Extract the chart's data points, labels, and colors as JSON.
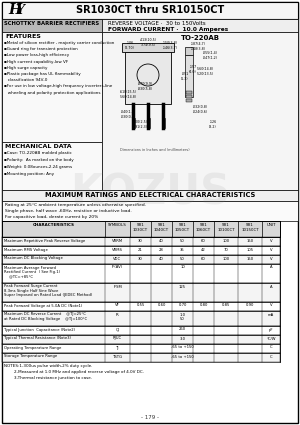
{
  "title": "SR1030CT thru SR10150CT",
  "left_header": "SCHOTTKY BARRIER RECTIFIERS",
  "right_header1": "REVERSE VOLTAGE ·  30 to 150Volts",
  "right_header2": "FORWARD CURRENT ·  10.0 Amperes",
  "package": "TO-220AB",
  "features_title": "FEATURES",
  "features": [
    "▪Metal of silicon rectifier , majority carrier conduction",
    "▪Guard ring for transient protection",
    "▪Low power loss,high efficiency",
    "▪High current capability,low VF",
    "▪High surge capacity",
    "▪Plastic package has UL flammability",
    "   classification 94V-0",
    "▪For use in low voltage,high frequency inverters,line",
    "   wheeling and polarity protection applications"
  ],
  "mech_title": "MECHANICAL DATA",
  "mech": [
    "▪Case: TO-220AB molded plastic",
    "▪Polarity:  As marked on the body",
    "▪Weight: 0.08ounces,2.24 grams",
    "▪Mounting position: Any"
  ],
  "max_title": "MAXIMUM RATINGS AND ELECTRICAL CHARACTERISTICS",
  "max_note1": "Rating at 25°C ambient temperature unless otherwise specified.",
  "max_note2": "Single phase, half wave ,60Hz, resistive or inductive load.",
  "max_note3": "For capacitive load, derate current by 20%",
  "col_headers": [
    "CHARACTERISTICS",
    "SYMBOLS",
    "SR1\n1030CT",
    "SR1\n1040CT",
    "SR1\n1050CT",
    "SR1\n1060CT",
    "SR1\n10100CT",
    "SR1\n10150CT",
    "UNIT"
  ],
  "rows": [
    [
      "Maximum Repetitive Peak Reverse Voltage",
      "VRRM",
      "30",
      "40",
      "50",
      "60",
      "100",
      "150",
      "V"
    ],
    [
      "Maximum RMS Voltage",
      "VRMS",
      "21",
      "28",
      "35",
      "42",
      "70",
      "105",
      "V"
    ],
    [
      "Maximum DC Blocking Voltage",
      "VDC",
      "30",
      "40",
      "50",
      "60",
      "100",
      "150",
      "V"
    ],
    [
      "Maximum Average Forward\nRectified Current  ( See Fig.1)\n    @TC=+85°C",
      "IF(AV)",
      "",
      "",
      "10",
      "",
      "",
      "",
      "A"
    ],
    [
      "Peak Forward Surge Current\n8.3ms Single Half Sine Wave\nSuper Imposed on Rated Load (JEDEC Method)",
      "IFSM",
      "",
      "",
      "125",
      "",
      "",
      "",
      "A"
    ],
    [
      "Peak Forward Voltage at 5.0A DC (Note1)",
      "VF",
      "0.55",
      "0.60",
      "0.70",
      "0.80",
      "0.85",
      "0.90",
      "V"
    ],
    [
      "Maximum DC Reverse Current    @T J=25°C\nat Rated DC Blocking Voltage    @T J=100°C",
      "IR",
      "",
      "",
      "1.0\n50",
      "",
      "",
      "",
      "mA"
    ],
    [
      "Typical Junction  Capacitance (Note2)",
      "CJ",
      "",
      "",
      "260",
      "",
      "",
      "",
      "pF"
    ],
    [
      "Typical Thermal Resistance (Note3)",
      "RJUC",
      "",
      "",
      "3.0",
      "",
      "",
      "",
      "°C/W"
    ],
    [
      "Operating Temperature Range",
      "TJ",
      "",
      "",
      "-65 to +150",
      "",
      "",
      "",
      "C"
    ],
    [
      "Storage Temperature Range",
      "TSTG",
      "",
      "",
      "-65 to +150",
      "",
      "",
      "",
      "C"
    ]
  ],
  "notes": [
    "NOTES:1-300us pulse width,2% duty cycle.",
    "        2-Measured at 1.0 MHz and applied reverse voltage of 4.0V DC.",
    "        3-Thermal resistance junction to case."
  ],
  "page_num": "- 179 -",
  "bg_color": "#ffffff",
  "watermark": "KOZUS"
}
